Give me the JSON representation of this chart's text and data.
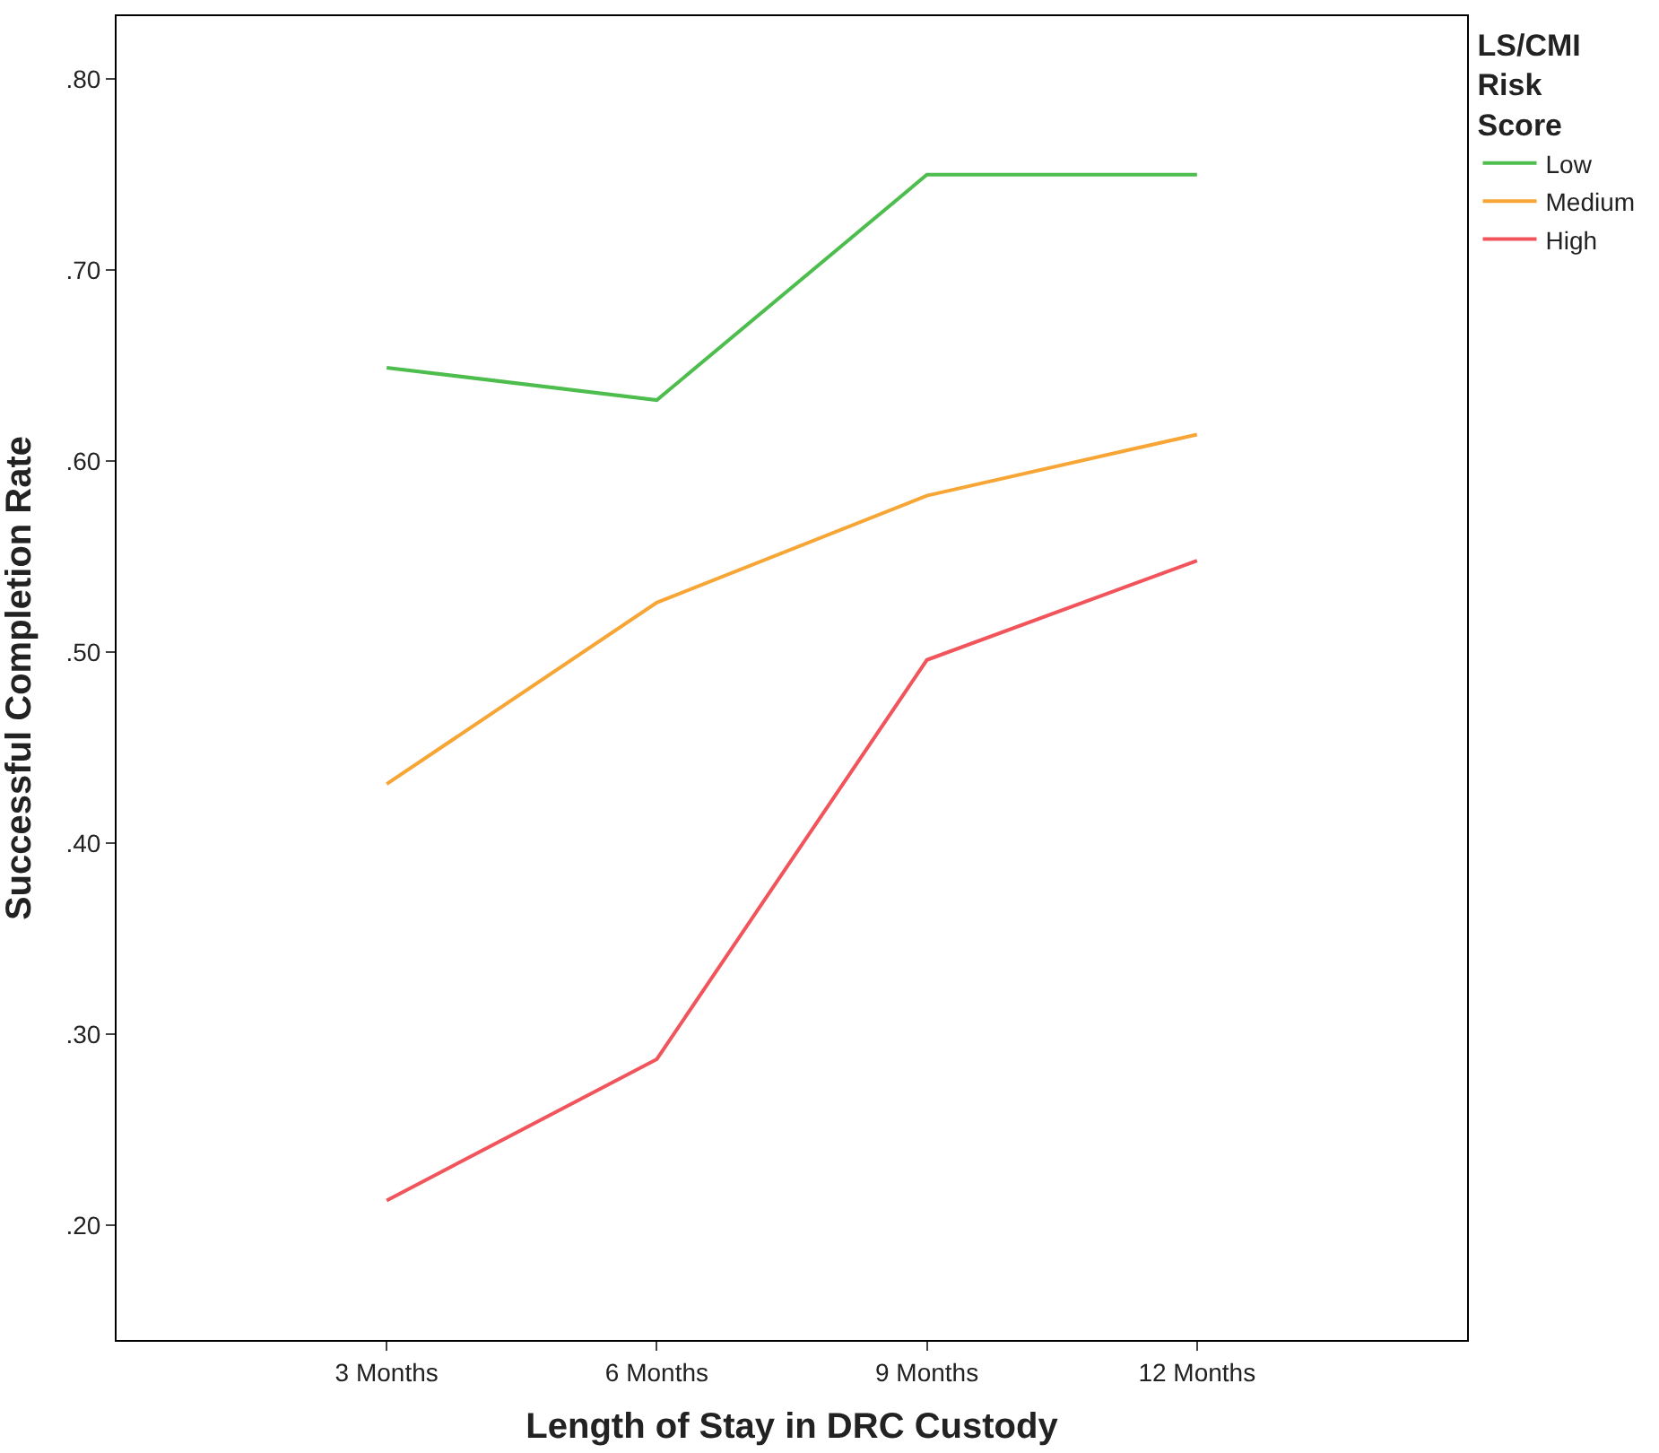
{
  "chart_data": {
    "type": "line",
    "xlabel": "Length of Stay in DRC Custody",
    "ylabel": "Successful Completion Rate",
    "legend_title": "LS/CMI\nRisk\nScore",
    "legend": "right",
    "marker": "none",
    "line_style": "solid",
    "categories": [
      "3 Months",
      "6 Months",
      "9 Months",
      "12 Months"
    ],
    "ylim": [
      0.14,
      0.833
    ],
    "yticks": [
      {
        "value": 0.2,
        "label": ".20"
      },
      {
        "value": 0.3,
        "label": ".30"
      },
      {
        "value": 0.4,
        "label": ".40"
      },
      {
        "value": 0.5,
        "label": ".50"
      },
      {
        "value": 0.6,
        "label": ".60"
      },
      {
        "value": 0.7,
        "label": ".70"
      },
      {
        "value": 0.8,
        "label": ".80"
      }
    ],
    "series": [
      {
        "name": "Low",
        "color": "#4dbd4d",
        "values": [
          0.649,
          0.632,
          0.75,
          0.75
        ]
      },
      {
        "name": "Medium",
        "color": "#f7a535",
        "values": [
          0.431,
          0.526,
          0.582,
          0.614
        ]
      },
      {
        "name": "High",
        "color": "#f2545b",
        "values": [
          0.213,
          0.287,
          0.496,
          0.548
        ]
      }
    ]
  }
}
